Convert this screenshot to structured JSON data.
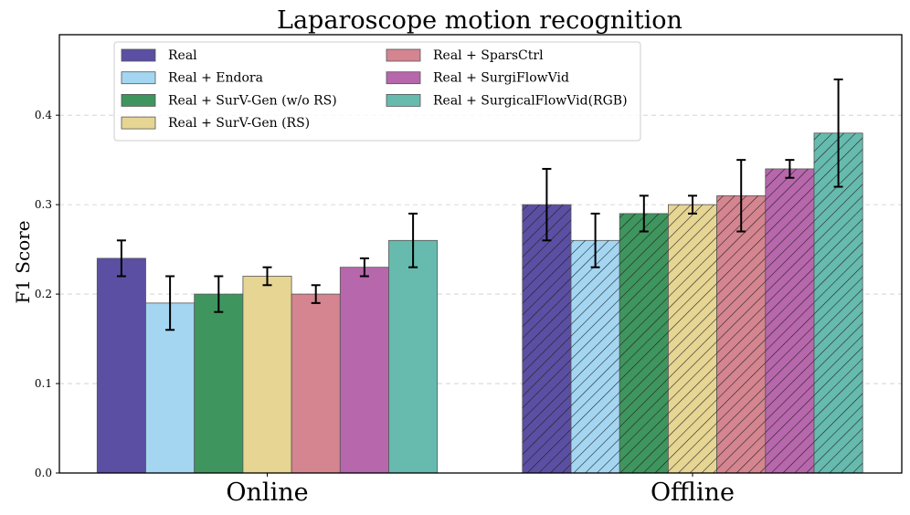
{
  "chart_data": {
    "type": "bar",
    "title": "Laparoscope motion recognition",
    "xlabel": "",
    "ylabel": "F1 Score",
    "ylim": [
      0,
      0.49
    ],
    "yticks": [
      0.0,
      0.1,
      0.2,
      0.3,
      0.4
    ],
    "ytick_labels": [
      "0.0",
      "0.1",
      "0.2",
      "0.3",
      "0.4"
    ],
    "grid": true,
    "legend_position": "top-left",
    "categories": [
      "Online",
      "Offline"
    ],
    "hatched_categories": [
      "Offline"
    ],
    "series": [
      {
        "name": "Real",
        "color": "#5b4fa3",
        "values": [
          0.24,
          0.3
        ],
        "errors": [
          0.02,
          0.04
        ]
      },
      {
        "name": "Real + Endora",
        "color": "#a4d6f2",
        "values": [
          0.19,
          0.26
        ],
        "errors": [
          0.03,
          0.03
        ]
      },
      {
        "name": "Real + SurV-Gen (w/o RS)",
        "color": "#3f955e",
        "values": [
          0.2,
          0.29
        ],
        "errors": [
          0.02,
          0.02
        ]
      },
      {
        "name": "Real + SurV-Gen (RS)",
        "color": "#e6d593",
        "values": [
          0.22,
          0.3
        ],
        "errors": [
          0.01,
          0.01
        ]
      },
      {
        "name": "Real + SparsCtrl",
        "color": "#d4858f",
        "values": [
          0.2,
          0.31
        ],
        "errors": [
          0.01,
          0.04
        ]
      },
      {
        "name": "Real + SurgiFlowVid",
        "color": "#b767ac",
        "values": [
          0.23,
          0.34
        ],
        "errors": [
          0.01,
          0.01
        ]
      },
      {
        "name": "Real + SurgicalFlowVid(RGB)",
        "color": "#66baae",
        "values": [
          0.26,
          0.38
        ],
        "errors": [
          0.03,
          0.06
        ]
      }
    ]
  }
}
